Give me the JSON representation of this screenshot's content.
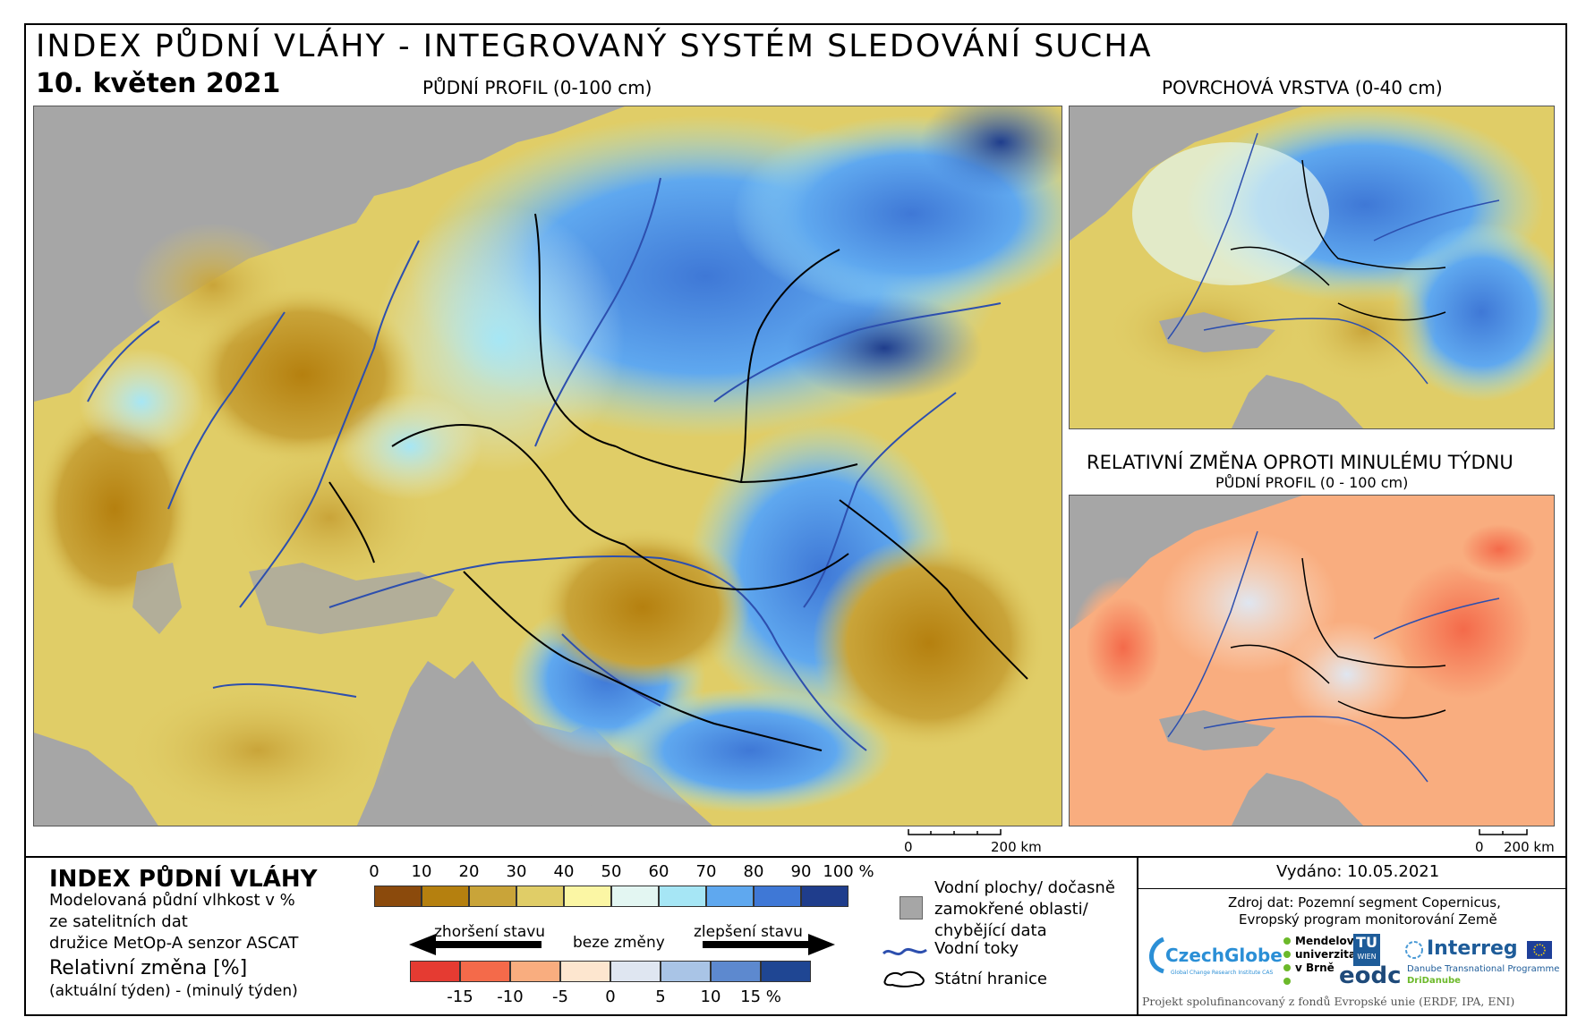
{
  "header": {
    "title": "INDEX PŮDNÍ VLÁHY - INTEGROVANÝ SYSTÉM SLEDOVÁNÍ SUCHA",
    "date": "10. květen 2021"
  },
  "maps": {
    "main_label": "PŮDNÍ PROFIL (0-100 cm)",
    "surface_label": "POVRCHOVÁ VRSTVA (0-40 cm)",
    "change_label": "RELATIVNÍ ZMĚNA OPROTI MINULÉMU TÝDNU",
    "change_sublabel": "PŮDNÍ PROFIL (0 - 100 cm)",
    "scale_main": {
      "zero": "0",
      "end": "200 km"
    },
    "scale_small": {
      "zero": "0",
      "end": "200 km"
    }
  },
  "legend": {
    "title": "INDEX PŮDNÍ VLÁHY",
    "desc_line1": "Modelovaná půdní vlhkost v %",
    "desc_line2": "ze satelitních dat",
    "desc_line3": "družice MetOp-A senzor ASCAT",
    "change_title": "Relativní změna [%]",
    "change_desc": "(aktuální týden) - (minulý týden)",
    "index_ticks": [
      "0",
      "10",
      "20",
      "30",
      "40",
      "50",
      "60",
      "70",
      "80",
      "90",
      "100 %"
    ],
    "index_colors": [
      "#8b4a0c",
      "#b5800f",
      "#c9a439",
      "#e0cd67",
      "#fbf6a4",
      "#e3f6f2",
      "#a6e6f5",
      "#5fa8ef",
      "#3f78d6",
      "#1f3d8c"
    ],
    "worse_label": "zhoršení stavu",
    "nochange_label": "beze změny",
    "better_label": "zlepšení stavu",
    "change_ticks": [
      "-15",
      "-10",
      "-5",
      "0",
      "5",
      "10",
      "15 %"
    ],
    "change_colors": [
      "#e53b32",
      "#f46a4a",
      "#f9ad7f",
      "#fde6cf",
      "#dfe6f1",
      "#a9c4e6",
      "#5d89cf",
      "#1f4693"
    ],
    "water_label_1": "Vodní plochy/ dočasně",
    "water_label_2": "zamokřené oblasti/",
    "water_label_3": "chybějící data",
    "rivers_label": "Vodní toky",
    "borders_label": "Státní hranice",
    "missing_color": "#a6a6a6",
    "river_color": "#2d4fae"
  },
  "info": {
    "issued": "Vydáno: 10.05.2021",
    "source_line1": "Zdroj dat: Pozemní segment Copernicus,",
    "source_line2": "Evropský program monitorování Země",
    "logo_czechglobe": "CzechGlobe",
    "logo_czechglobe_sub": "Global Change Research Institute CAS",
    "logo_mendel_1": "Mendelova",
    "logo_mendel_2": "univerzita",
    "logo_mendel_3": "v Brně",
    "logo_tu": "TU",
    "logo_tu_sub": "WIEN",
    "logo_eodc": "eodc",
    "logo_interreg": "Interreg",
    "logo_interreg_sub1": "Danube Transnational Programme",
    "logo_interreg_sub2": "DriDanube",
    "footer": "Projekt spolufinancovaný z fondů Evropské unie (ERDF, IPA, ENI)"
  }
}
